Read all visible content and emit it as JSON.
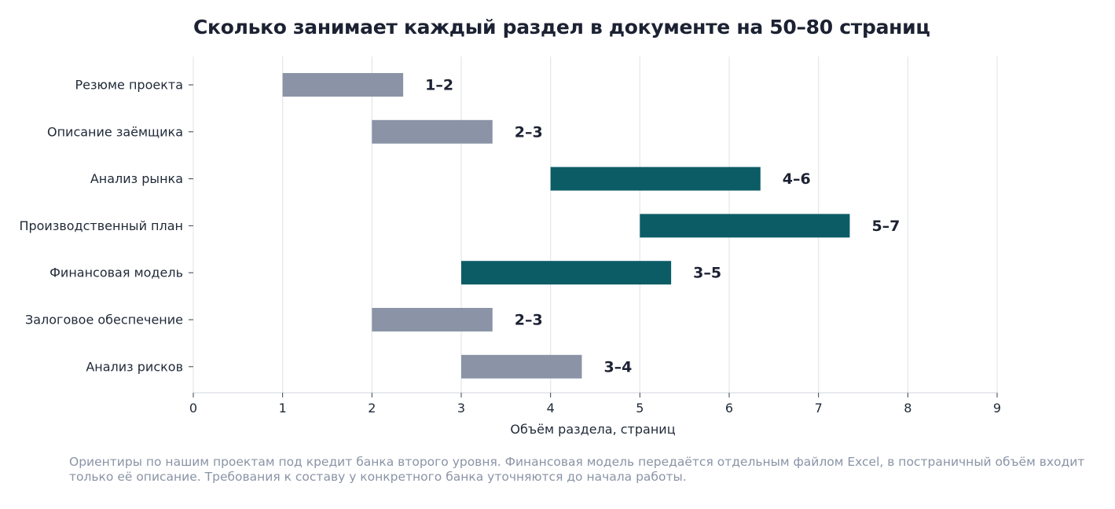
{
  "chart_data": {
    "type": "bar",
    "orientation": "horizontal",
    "title": "Сколько занимает каждый раздел в документе на 50–80 страниц",
    "xlabel": "Объём раздела, страниц",
    "ylabel": "",
    "xlim": [
      0,
      9
    ],
    "xticks": [
      "0",
      "1",
      "2",
      "3",
      "4",
      "5",
      "6",
      "7",
      "8",
      "9"
    ],
    "grid": "vertical",
    "categories": [
      "Резюме проекта",
      "Описание заёмщика",
      "Анализ рынка",
      "Производственный план",
      "Финансовая модель",
      "Залоговое обеспечение",
      "Анализ рисков"
    ],
    "ranges": [
      {
        "start": 1,
        "end": 2.35,
        "label": "1–2",
        "highlight": false
      },
      {
        "start": 2,
        "end": 3.35,
        "label": "2–3",
        "highlight": false
      },
      {
        "start": 4,
        "end": 6.35,
        "label": "4–6",
        "highlight": true
      },
      {
        "start": 5,
        "end": 7.35,
        "label": "5–7",
        "highlight": true
      },
      {
        "start": 3,
        "end": 5.35,
        "label": "3–5",
        "highlight": true
      },
      {
        "start": 2,
        "end": 3.35,
        "label": "2–3",
        "highlight": false
      },
      {
        "start": 3,
        "end": 4.35,
        "label": "3–4",
        "highlight": false
      }
    ],
    "colors": {
      "highlight": "#0c5c66",
      "default": "#8a94a6",
      "grid": "#e5e7eb",
      "axis": "#e2e4ea"
    },
    "footnote": "Ориентиры по нашим проектам под кредит банка второго уровня. Финансовая модель передаётся отдельным файлом Excel, в постраничный объём входит только её описание. Требования к составу у конкретного банка уточняются до начала работы."
  }
}
